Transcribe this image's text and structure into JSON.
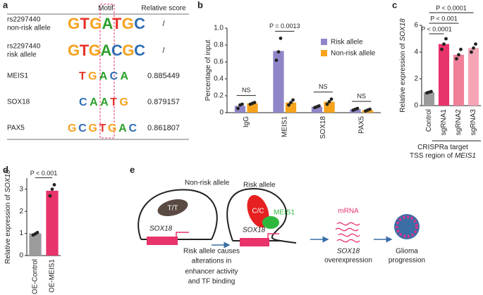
{
  "panel_a": {
    "label": "a",
    "header": [
      "Motif",
      "Relative score"
    ],
    "rows": [
      {
        "name": [
          "rs2297440",
          "non-risk allele"
        ],
        "motif": "GTGATGC",
        "score": "/"
      },
      {
        "name": [
          "rs2297440",
          "risk allele"
        ],
        "motif": "GTGACGC",
        "score": "/"
      },
      {
        "name": [
          "MEIS1"
        ],
        "motif": "TGACA",
        "score": "0.885449"
      },
      {
        "name": [
          "SOX18"
        ],
        "motif": "CAATG",
        "score": "0.879157"
      },
      {
        "name": [
          "PAX5"
        ],
        "motif": "GCGTGAC",
        "score": "0.861807"
      }
    ]
  },
  "chart_data": [
    {
      "type": "bar",
      "panel": "b",
      "y_label": [
        "Percentage of input"
      ],
      "categories": [
        "IgG",
        "MEIS1",
        "SOX18",
        "PAX5"
      ],
      "series": [
        {
          "name": "Risk allele",
          "color": "#8e86c8",
          "values": [
            0.08,
            0.73,
            0.07,
            0.04
          ],
          "points": [
            [
              0.05,
              0.09,
              0.1
            ],
            [
              0.62,
              0.72,
              0.88
            ],
            [
              0.06,
              0.07,
              0.08
            ],
            [
              0.03,
              0.04,
              0.05
            ]
          ]
        },
        {
          "name": "Non-risk allele",
          "color": "#f5a31d",
          "values": [
            0.11,
            0.12,
            0.13,
            0.03
          ],
          "points": [
            [
              0.1,
              0.11,
              0.12
            ],
            [
              0.09,
              0.12,
              0.15
            ],
            [
              0.1,
              0.13,
              0.16
            ],
            [
              0.02,
              0.03,
              0.04
            ]
          ]
        }
      ],
      "ylim": [
        0,
        1
      ],
      "yticks": [
        0,
        0.2,
        0.4,
        0.6,
        0.8,
        {
          "value": 1,
          "label": "1.0"
        }
      ],
      "legend": "upper right",
      "annotations": [
        "NS",
        "P = 0.0013",
        "NS",
        "NS"
      ]
    },
    {
      "type": "bar",
      "panel": "c",
      "y_label": [
        "Relative expression of ",
        "SOX18"
      ],
      "categories": [
        "Control",
        "sgRNA1",
        "sgRNA2",
        "sgRNA3"
      ],
      "values": [
        1,
        4.6,
        3.8,
        4.3
      ],
      "colors": [
        "#9b9b9b",
        "#e8336b",
        "#f07f98",
        "#f4a6b6"
      ],
      "points": [
        [
          0.95,
          1,
          1.05
        ],
        [
          4.2,
          4.6,
          5
        ],
        [
          3.5,
          3.8,
          4.2
        ],
        [
          4,
          4.3,
          4.6
        ]
      ],
      "ylim": [
        0,
        6
      ],
      "yticks": [
        0,
        2,
        4,
        6
      ],
      "annotations": [
        "P < 0.0001",
        "P < 0.001",
        "P < 0.0001"
      ],
      "x_label": [
        [
          "CRISPRa target"
        ],
        [
          "TSS region of ",
          "MEIS1"
        ]
      ]
    },
    {
      "type": "bar",
      "panel": "d",
      "y_label": [
        "Relative expression of ",
        "SOX18"
      ],
      "categories": [
        "OE-Control",
        "OE-MEIS1"
      ],
      "values": [
        1,
        2.93
      ],
      "colors": [
        "#9b9b9b",
        "#e8336b"
      ],
      "points": [
        [
          0.93,
          0.98,
          1.04
        ],
        [
          2.7,
          3,
          3.2
        ]
      ],
      "ylim": [
        0,
        3.5
      ],
      "yticks": [
        0,
        1,
        2,
        3
      ],
      "annotations": [
        "P < 0.001"
      ]
    }
  ],
  "panel_e": {
    "label": "e",
    "non_risk_allele": "Non-risk allele",
    "genotype_non_risk": "T/T",
    "gene_left": "SOX18",
    "risk_allele": "Risk allele",
    "genotype_risk": "C/C",
    "tf": "MEIS1",
    "gene_middle": "SOX18",
    "caption": [
      "Risk allele causes",
      "alterations in",
      "enhancer activity",
      "and TF binding"
    ],
    "mrna": "mRNA",
    "overexpression": [
      "SOX18",
      "overexpression"
    ],
    "outcome": [
      "Glioma",
      "progression"
    ]
  }
}
